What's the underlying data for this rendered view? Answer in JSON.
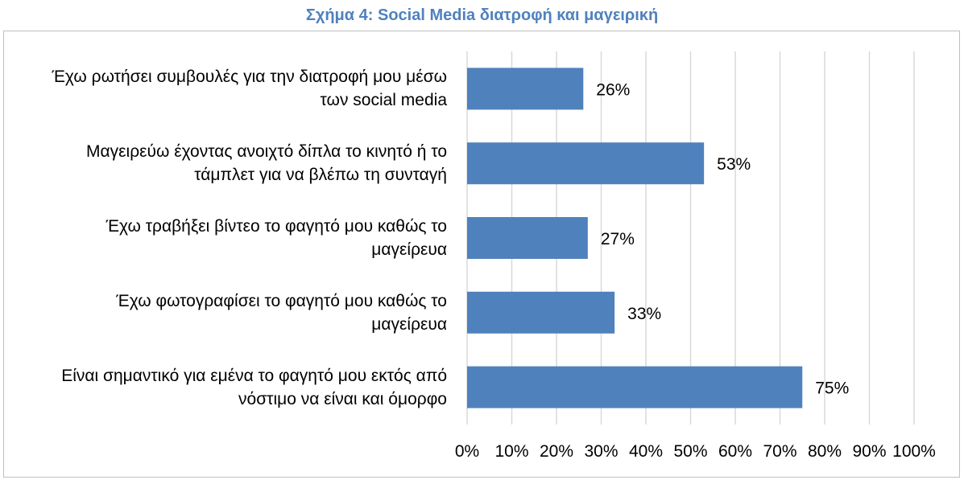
{
  "chart_data": {
    "type": "bar",
    "orientation": "horizontal",
    "title": "Σχήμα 4: Social Media διατροφή και μαγειρική",
    "categories": [
      [
        "Έχω ρωτήσει συμβουλές για την διατροφή μου μέσω",
        "των social media"
      ],
      [
        "Μαγειρεύω έχοντας ανοιχτό δίπλα το κινητό ή το",
        "τάμπλετ για να βλέπω τη συνταγή"
      ],
      [
        "Έχω τραβήξει βίντεο το φαγητό μου καθώς το",
        "μαγείρευα"
      ],
      [
        "Έχω φωτογραφίσει το φαγητό μου καθώς το",
        "μαγείρευα"
      ],
      [
        "Είναι σημαντικό για εμένα το φαγητό μου εκτός από",
        "νόστιμο να είναι και όμορφο"
      ]
    ],
    "values": [
      26,
      53,
      27,
      33,
      75
    ],
    "data_labels": [
      "26%",
      "53%",
      "27%",
      "33%",
      "75%"
    ],
    "xlim": [
      0,
      100
    ],
    "x_ticks": [
      "0%",
      "10%",
      "20%",
      "30%",
      "40%",
      "50%",
      "60%",
      "70%",
      "80%",
      "90%",
      "100%"
    ],
    "grid": "vertical",
    "legend": "none",
    "bar_color": "#4f81bd",
    "grid_color": "#d9d9d9"
  }
}
